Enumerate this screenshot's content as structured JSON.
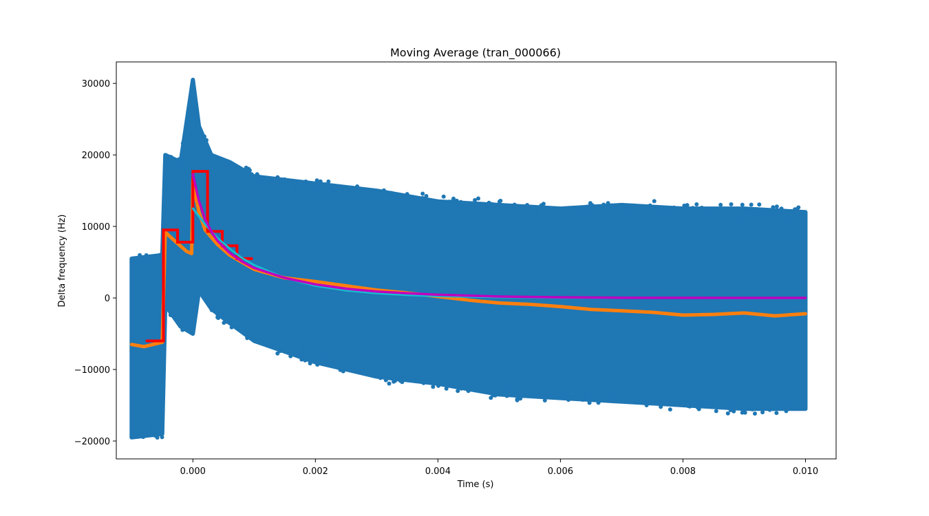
{
  "chart_data": {
    "type": "scatter",
    "title": "Moving Average (tran_000066)",
    "xlabel": "Time (s)",
    "ylabel": "Delta frequency (Hz)",
    "xlim": [
      -0.00125,
      0.0105
    ],
    "ylim": [
      -22500,
      33000
    ],
    "x_ticks": [
      0.0,
      0.002,
      0.004,
      0.006,
      0.008,
      0.01
    ],
    "x_tick_labels": [
      "0.000",
      "0.002",
      "0.004",
      "0.006",
      "0.008",
      "0.010"
    ],
    "y_ticks": [
      -20000,
      -10000,
      0,
      10000,
      20000,
      30000
    ],
    "y_tick_labels": [
      "−20000",
      "−10000",
      "0",
      "10000",
      "20000",
      "30000"
    ],
    "grid": false,
    "legend": "none",
    "colors": {
      "raw": "#1f77b4",
      "moving_average": "#ff7f0e",
      "step_average": "#ff0000",
      "fit_cyan": "#17becf",
      "fit_magenta": "#bf00bf"
    },
    "series": [
      {
        "kind": "scatter-band",
        "color": "#1f77b4",
        "description_points": [
          {
            "x": -0.001,
            "low": -19500,
            "high": 5500
          },
          {
            "x": -0.0005,
            "low": -19000,
            "high": 6000
          },
          {
            "x": -0.00045,
            "low": -1000,
            "high": 20000
          },
          {
            "x": -0.0002,
            "low": -4000,
            "high": 19000
          },
          {
            "x": 0.0,
            "low": -5000,
            "high": 30500
          },
          {
            "x": 0.0001,
            "low": 1000,
            "high": 24000
          },
          {
            "x": 0.0003,
            "low": -1500,
            "high": 20000
          },
          {
            "x": 0.0006,
            "low": -3500,
            "high": 19000
          },
          {
            "x": 0.001,
            "low": -6000,
            "high": 17000
          },
          {
            "x": 0.002,
            "low": -9000,
            "high": 16000
          },
          {
            "x": 0.003,
            "low": -11000,
            "high": 15000
          },
          {
            "x": 0.004,
            "low": -12000,
            "high": 13500
          },
          {
            "x": 0.005,
            "low": -13500,
            "high": 13000
          },
          {
            "x": 0.006,
            "low": -14000,
            "high": 12500
          },
          {
            "x": 0.007,
            "low": -14500,
            "high": 13000
          },
          {
            "x": 0.008,
            "low": -15000,
            "high": 12500
          },
          {
            "x": 0.009,
            "low": -15500,
            "high": 12500
          },
          {
            "x": 0.01,
            "low": -15500,
            "high": 12000
          }
        ]
      },
      {
        "kind": "moving-average",
        "color": "#ff7f0e",
        "x": [
          -0.001,
          -0.0008,
          -0.0006,
          -0.0005,
          -0.00045,
          -0.0003,
          -0.0001,
          -2e-05,
          0.0,
          5e-05,
          0.0001,
          0.0002,
          0.0004,
          0.0006,
          0.0008,
          0.001,
          0.0015,
          0.002,
          0.0025,
          0.003,
          0.0035,
          0.004,
          0.0045,
          0.005,
          0.0055,
          0.006,
          0.0065,
          0.007,
          0.0075,
          0.008,
          0.0085,
          0.009,
          0.0095,
          0.01
        ],
        "y": [
          -6500,
          -6800,
          -6400,
          -6200,
          9200,
          8000,
          6500,
          6200,
          16500,
          14000,
          12000,
          9500,
          7500,
          6000,
          5000,
          4000,
          2800,
          2300,
          1700,
          1100,
          700,
          200,
          -300,
          -700,
          -900,
          -1200,
          -1600,
          -1800,
          -2000,
          -2400,
          -2300,
          -2100,
          -2500,
          -2200
        ]
      },
      {
        "kind": "step",
        "color": "#ff0000",
        "x": [
          -0.00075,
          -0.00048,
          -0.00048,
          -0.00025,
          -0.00025,
          0.0,
          0.0,
          0.00024,
          0.00024,
          0.00048,
          0.00048,
          0.00072,
          0.00072,
          0.00096
        ],
        "y": [
          -6000,
          -6000,
          9500,
          9500,
          7800,
          7800,
          17700,
          17700,
          9300,
          9300,
          7300,
          7300,
          5500,
          5500
        ]
      },
      {
        "kind": "fit",
        "color": "#17becf",
        "x": [
          0.0,
          0.0002,
          0.0004,
          0.0006,
          0.0008,
          0.001,
          0.0015,
          0.002,
          0.0025,
          0.003,
          0.0035,
          0.004,
          0.005,
          0.006,
          0.007,
          0.008,
          0.009,
          0.01
        ],
        "y": [
          12500,
          10300,
          8400,
          6900,
          5600,
          4600,
          2800,
          1700,
          1050,
          650,
          400,
          250,
          100,
          40,
          15,
          5,
          2,
          0
        ]
      },
      {
        "kind": "fit",
        "color": "#bf00bf",
        "x": [
          0.0,
          0.0001,
          0.0002,
          0.0003,
          0.0004,
          0.0006,
          0.0008,
          0.001,
          0.0015,
          0.002,
          0.0025,
          0.003,
          0.0035,
          0.004,
          0.005,
          0.006,
          0.007,
          0.008,
          0.009,
          0.01
        ],
        "y": [
          17300,
          13500,
          11000,
          9300,
          8000,
          6300,
          5100,
          4200,
          2800,
          1900,
          1300,
          900,
          650,
          450,
          200,
          90,
          40,
          20,
          10,
          5
        ]
      }
    ]
  }
}
